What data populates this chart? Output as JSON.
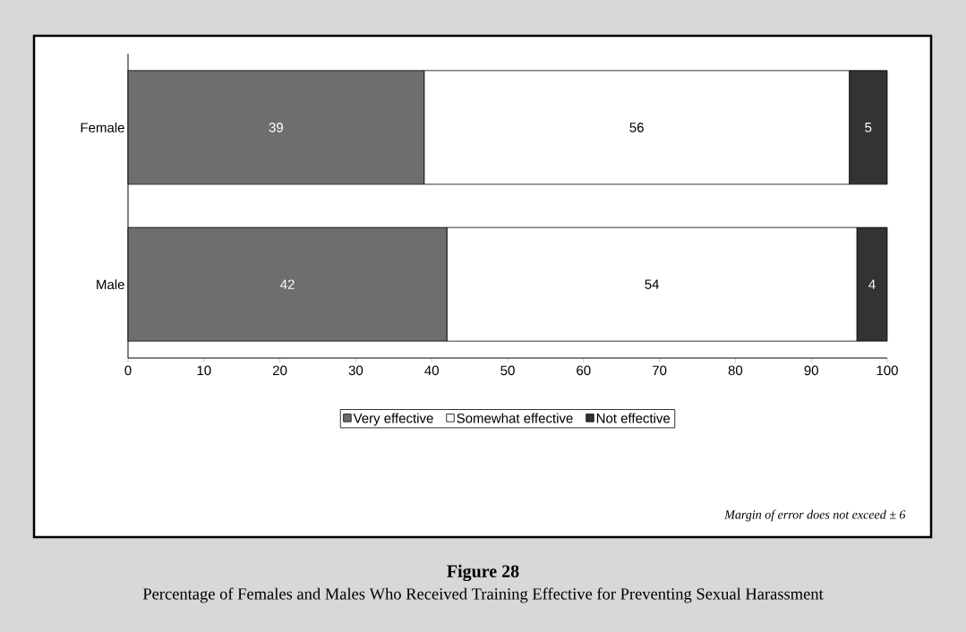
{
  "chart_data": {
    "type": "bar",
    "orientation": "horizontal",
    "stacked": true,
    "title": "Figure 28",
    "subtitle": "Percentage of Females and Males Who Received Training Effective for Preventing Sexual Harassment",
    "annotations": [
      "Margin of error does not exceed ± 6"
    ],
    "categories": [
      "Female",
      "Male"
    ],
    "series": [
      {
        "name": "Very effective",
        "color": "#6e6e6e",
        "values": [
          39,
          42
        ]
      },
      {
        "name": "Somewhat effective",
        "color": "#ffffff",
        "values": [
          56,
          54
        ]
      },
      {
        "name": "Not effective",
        "color": "#333333",
        "values": [
          5,
          4
        ]
      }
    ],
    "xlim": [
      0,
      100
    ],
    "xticks": [
      0,
      10,
      20,
      30,
      40,
      50,
      60,
      70,
      80,
      90,
      100
    ],
    "data_labels": true,
    "legend": "bottom"
  }
}
